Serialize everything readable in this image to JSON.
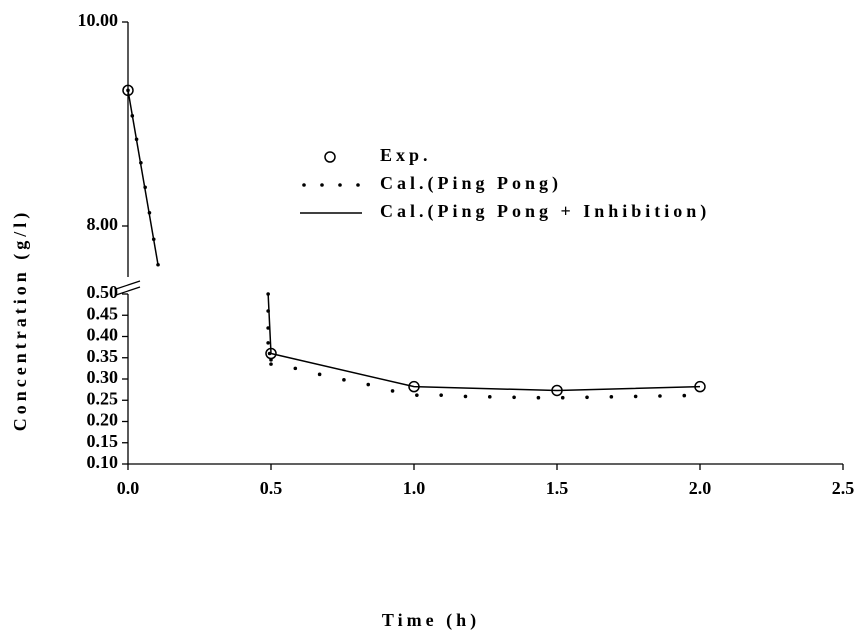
{
  "chart_data": [
    {
      "type": "line",
      "ylim": [
        7.5,
        10.0
      ],
      "yticks": [
        {
          "value": 8,
          "label": "8.00"
        },
        {
          "value": 10,
          "label": "10.00"
        }
      ],
      "xlim": [
        0,
        2.5
      ],
      "series": [
        {
          "color": "#000",
          "style": "circle",
          "x": [
            0
          ],
          "values": [
            9.33
          ]
        },
        {
          "color": "#000",
          "style": "dots",
          "x": [
            0,
            0.015,
            0.03,
            0.045,
            0.06,
            0.075,
            0.09,
            0.105
          ],
          "values": [
            9.33,
            9.08,
            8.85,
            8.62,
            8.38,
            8.13,
            7.87,
            7.62
          ]
        },
        {
          "color": "#000",
          "style": "line",
          "x": [
            0,
            0.105
          ],
          "values": [
            9.33,
            7.62
          ]
        }
      ]
    },
    {
      "type": "line",
      "xlabel": "Time (h)",
      "ylabel": "Concentration (g/l)",
      "xlim": [
        0,
        2.5
      ],
      "xticks": [
        {
          "value": 0,
          "label": "0.0"
        },
        0.5,
        {
          "value": 1,
          "label": "1.0"
        },
        1.5,
        {
          "value": 2,
          "label": "2.0"
        },
        2.5
      ],
      "ylim": [
        0.1,
        0.5
      ],
      "yticks": [
        {
          "value": 0.1,
          "label": "0.10"
        },
        0.15,
        {
          "value": 0.2,
          "label": "0.20"
        },
        0.25,
        {
          "value": 0.3,
          "label": "0.30"
        },
        0.35,
        {
          "value": 0.4,
          "label": "0.40"
        },
        0.45,
        {
          "value": 0.5,
          "label": "0.50"
        }
      ],
      "series": [
        {
          "name": "Exp.",
          "color": "#000",
          "style": "circle",
          "x": [
            0.5,
            1.0,
            1.5,
            2.0
          ],
          "values": [
            0.36,
            0.282,
            0.273,
            0.282
          ]
        },
        {
          "name": "Cal.(Ping Pong)",
          "color": "#000",
          "style": "dots",
          "x": [
            0.49,
            0.49,
            0.49,
            0.49,
            0.495,
            0.5,
            0.5,
            0.585,
            0.67,
            0.755,
            0.84,
            0.925,
            1.01,
            1.095,
            1.18,
            1.265,
            1.35,
            1.435,
            1.52,
            1.605,
            1.69,
            1.775,
            1.86,
            1.945
          ],
          "values": [
            0.5,
            0.46,
            0.42,
            0.385,
            0.36,
            0.345,
            0.335,
            0.325,
            0.311,
            0.298,
            0.287,
            0.272,
            0.262,
            0.262,
            0.259,
            0.258,
            0.257,
            0.256,
            0.256,
            0.257,
            0.258,
            0.259,
            0.26,
            0.261
          ]
        },
        {
          "name": "Cal.(Ping Pong + Inhibition)",
          "color": "#000",
          "style": "line",
          "x": [
            0.49,
            0.5,
            1.0,
            1.5,
            2.0
          ],
          "values": [
            0.5,
            0.36,
            0.282,
            0.273,
            0.282
          ]
        }
      ]
    }
  ]
}
